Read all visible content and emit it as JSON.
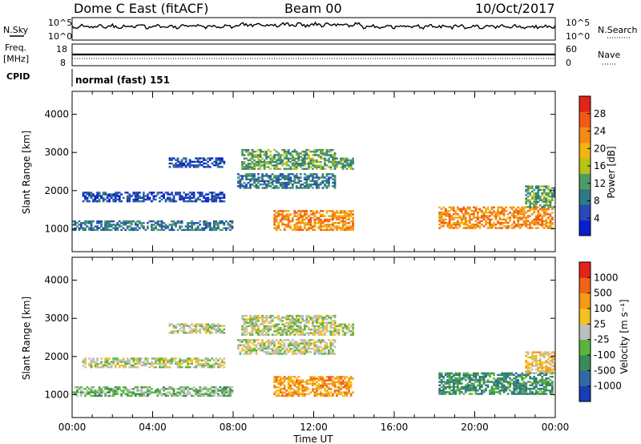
{
  "header": {
    "radar": "Dome C East (fitACF)",
    "beam": "Beam 00",
    "date": "10/Oct/2017"
  },
  "top_panels": {
    "nsky": {
      "label": "N.Sky",
      "ticks": [
        "10^5",
        "10^0"
      ],
      "right_label": "N.Search",
      "right_ticks": [
        "10^5",
        "10^0"
      ]
    },
    "freq": {
      "label_line1": "Freq.",
      "label_line2": "[MHz]",
      "ticks": [
        "18",
        "8"
      ],
      "right_label": "Nave",
      "right_ticks": [
        "60",
        "0"
      ]
    },
    "cpid": {
      "label": "CPID",
      "value": "normal (fast) 151"
    }
  },
  "chart_data": [
    {
      "type": "heatmap",
      "ylabel": "Slant Range [km]",
      "xlabel": "",
      "y_ticks": [
        "1000",
        "2000",
        "3000",
        "4000"
      ],
      "ylim": [
        400,
        4600
      ],
      "xlim": [
        0,
        24
      ],
      "colorbar": {
        "label": "Power [dB]",
        "ticks": [
          "4",
          "8",
          "12",
          "16",
          "20",
          "24",
          "28"
        ],
        "range": [
          0,
          32
        ],
        "colors": [
          "#0a1ecf",
          "#2a48b8",
          "#2e7a84",
          "#4f9b66",
          "#b6c418",
          "#f0b414",
          "#f48a17",
          "#f05a14",
          "#e3241a"
        ]
      },
      "regions": [
        {
          "t0": 0.0,
          "t1": 7.9,
          "r0": 950,
          "r1": 1200,
          "level": 2
        },
        {
          "t0": 0.5,
          "t1": 7.5,
          "r0": 1700,
          "r1": 1950,
          "level": 1
        },
        {
          "t0": 4.8,
          "t1": 7.5,
          "r0": 2600,
          "r1": 2850,
          "level": 1
        },
        {
          "t0": 8.2,
          "t1": 13.0,
          "r0": 2050,
          "r1": 2450,
          "level": 2
        },
        {
          "t0": 8.4,
          "t1": 13.0,
          "r0": 2550,
          "r1": 3050,
          "level": 3
        },
        {
          "t0": 13.0,
          "t1": 13.9,
          "r0": 2550,
          "r1": 2850,
          "level": 3
        },
        {
          "t0": 10.0,
          "t1": 13.9,
          "r0": 950,
          "r1": 1450,
          "level": 6
        },
        {
          "t0": 18.2,
          "t1": 23.9,
          "r0": 1000,
          "r1": 1550,
          "level": 6
        },
        {
          "t0": 22.5,
          "t1": 24.0,
          "r0": 1550,
          "r1": 2100,
          "level": 3
        }
      ]
    },
    {
      "type": "heatmap",
      "ylabel": "Slant Range [km]",
      "xlabel": "Time UT",
      "x_ticks": [
        "00:00",
        "04:00",
        "08:00",
        "12:00",
        "16:00",
        "20:00",
        "00:00"
      ],
      "y_ticks": [
        "1000",
        "2000",
        "3000",
        "4000"
      ],
      "ylim": [
        400,
        4600
      ],
      "xlim": [
        0,
        24
      ],
      "colorbar": {
        "label": "Velocity [m s⁻¹]",
        "ticks": [
          "1000",
          "500",
          "100",
          "25",
          "-25",
          "-100",
          "-500",
          "-1000"
        ],
        "colors": [
          "#1a3cb4",
          "#2f6aa5",
          "#3a8a5a",
          "#5ab43c",
          "#bdbdbd",
          "#f4c21e",
          "#f49a17",
          "#f06414",
          "#e3241a"
        ]
      },
      "regions": [
        {
          "t0": 0.0,
          "t1": 7.9,
          "r0": 950,
          "r1": 1200,
          "level": 3
        },
        {
          "t0": 0.5,
          "t1": 7.5,
          "r0": 1700,
          "r1": 1950,
          "level": 4
        },
        {
          "t0": 4.8,
          "t1": 7.5,
          "r0": 2600,
          "r1": 2850,
          "level": 4
        },
        {
          "t0": 8.2,
          "t1": 13.0,
          "r0": 2050,
          "r1": 2450,
          "level": 4
        },
        {
          "t0": 8.4,
          "t1": 13.0,
          "r0": 2550,
          "r1": 3050,
          "level": 4
        },
        {
          "t0": 13.0,
          "t1": 13.9,
          "r0": 2550,
          "r1": 2850,
          "level": 4
        },
        {
          "t0": 10.0,
          "t1": 13.9,
          "r0": 950,
          "r1": 1450,
          "level": 6
        },
        {
          "t0": 18.2,
          "t1": 23.9,
          "r0": 1000,
          "r1": 1550,
          "level": 2
        },
        {
          "t0": 22.5,
          "t1": 24.0,
          "r0": 1550,
          "r1": 2100,
          "level": 5
        }
      ]
    }
  ]
}
